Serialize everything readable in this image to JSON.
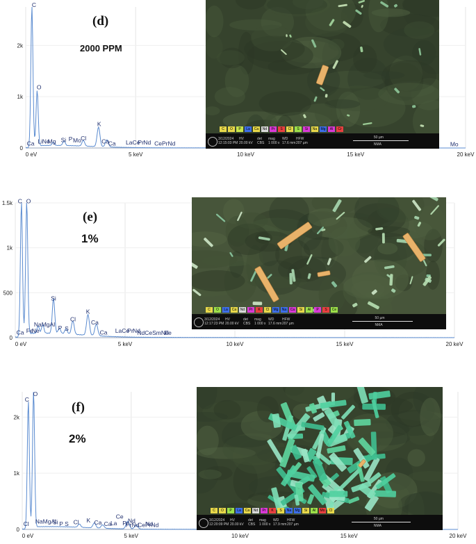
{
  "chart_data": [
    {
      "type": "line",
      "panel_label": "(d)",
      "concentration_label": "2000 PPM",
      "xlabels": [
        "0 eV",
        "5 keV",
        "10 keV",
        "15 keV",
        "20 keV"
      ],
      "xticks": [
        0,
        5,
        10,
        15,
        20
      ],
      "xlim": [
        0,
        20
      ],
      "yticks": [
        {
          "value": 0,
          "label": "0"
        },
        {
          "value": 1000,
          "label": "1k"
        },
        {
          "value": 2000,
          "label": "2k"
        }
      ],
      "ylim": [
        0,
        2750
      ],
      "grid": true,
      "series_color": "#5a8bd0",
      "peaks": [
        {
          "element": "C",
          "energy": 0.28,
          "counts": 2700
        },
        {
          "element": "O",
          "energy": 0.52,
          "counts": 1080
        },
        {
          "element": "Ca",
          "energy": 0.34,
          "counts": 70
        },
        {
          "element": "K",
          "energy": 3.31,
          "counts": 380
        },
        {
          "element": "Cl",
          "energy": 2.62,
          "counts": 110
        },
        {
          "element": "Si",
          "energy": 1.74,
          "counts": 90
        },
        {
          "element": "Ca",
          "energy": 3.69,
          "counts": 140
        },
        {
          "element": "Mg",
          "energy": 1.25,
          "counts": 60
        }
      ],
      "annotations": [
        {
          "text": "C",
          "x": 0.28,
          "y": 2720
        },
        {
          "text": "O",
          "x": 0.5,
          "y": 1120
        },
        {
          "text": "K",
          "x": 3.25,
          "y": 400
        },
        {
          "text": "Ca",
          "x": 0.05,
          "y": 20
        },
        {
          "text": "Li",
          "x": 0.55,
          "y": 60
        },
        {
          "text": "Ne",
          "x": 0.75,
          "y": 60
        },
        {
          "text": "Mg",
          "x": 1.0,
          "y": 60
        },
        {
          "text": "Si",
          "x": 1.6,
          "y": 90
        },
        {
          "text": "P",
          "x": 1.95,
          "y": 110
        },
        {
          "text": "Mo",
          "x": 2.15,
          "y": 80
        },
        {
          "text": "Cl",
          "x": 2.5,
          "y": 120
        },
        {
          "text": "Ca",
          "x": 3.45,
          "y": 60
        },
        {
          "text": "Ca",
          "x": 3.75,
          "y": 20
        },
        {
          "text": "La",
          "x": 4.55,
          "y": 40
        },
        {
          "text": "Ce",
          "x": 4.85,
          "y": 40
        },
        {
          "text": "Pr",
          "x": 5.1,
          "y": 40
        },
        {
          "text": "Nd",
          "x": 5.35,
          "y": 40
        },
        {
          "text": "CePrNd",
          "x": 5.85,
          "y": 20
        },
        {
          "text": "Mo",
          "x": 17.8,
          "y": 10
        },
        {
          "text": "Mo",
          "x": 19.3,
          "y": 10
        }
      ]
    },
    {
      "type": "line",
      "panel_label": "(e)",
      "concentration_label": "1%",
      "xlabels": [
        "0 eV",
        "5 keV",
        "10 keV",
        "15 keV",
        "20 keV"
      ],
      "xticks": [
        0,
        5,
        10,
        15,
        20
      ],
      "xlim": [
        0,
        20
      ],
      "yticks": [
        {
          "value": 0,
          "label": "0"
        },
        {
          "value": 500,
          "label": "500"
        },
        {
          "value": 1000,
          "label": "1k"
        },
        {
          "value": 1500,
          "label": "1.5k"
        }
      ],
      "ylim": [
        0,
        1500
      ],
      "grid": true,
      "series_color": "#5a8bd0",
      "peaks": [
        {
          "element": "C",
          "energy": 0.28,
          "counts": 1470
        },
        {
          "element": "O",
          "energy": 0.52,
          "counts": 1480
        },
        {
          "element": "Si",
          "energy": 1.74,
          "counts": 390
        },
        {
          "element": "K",
          "energy": 3.31,
          "counts": 230
        },
        {
          "element": "Ca",
          "energy": 3.69,
          "counts": 130
        },
        {
          "element": "Cl",
          "energy": 2.62,
          "counts": 150
        },
        {
          "element": "Mg",
          "energy": 1.25,
          "counts": 95
        },
        {
          "element": "Na",
          "energy": 1.04,
          "counts": 80
        },
        {
          "element": "P",
          "energy": 2.01,
          "counts": 60
        },
        {
          "element": "S",
          "energy": 2.31,
          "counts": 55
        }
      ],
      "annotations": [
        {
          "text": "C",
          "x": 0.12,
          "y": 1480
        },
        {
          "text": "O",
          "x": 0.5,
          "y": 1480
        },
        {
          "text": "Si",
          "x": 1.62,
          "y": 400
        },
        {
          "text": "K",
          "x": 3.22,
          "y": 250
        },
        {
          "text": "Ca",
          "x": 3.45,
          "y": 130
        },
        {
          "text": "Cl",
          "x": 2.5,
          "y": 165
        },
        {
          "text": "NaMgAl",
          "x": 0.85,
          "y": 110
        },
        {
          "text": "P",
          "x": 1.95,
          "y": 70
        },
        {
          "text": "S",
          "x": 2.25,
          "y": 60
        },
        {
          "text": "Ca",
          "x": 3.85,
          "y": 20
        },
        {
          "text": "Ca",
          "x": 0.05,
          "y": 20
        },
        {
          "text": "Fe",
          "x": 0.5,
          "y": 40
        },
        {
          "text": "Ne",
          "x": 0.75,
          "y": 40
        },
        {
          "text": "La",
          "x": 4.55,
          "y": 40
        },
        {
          "text": "Ce",
          "x": 4.85,
          "y": 40
        },
        {
          "text": "Pr",
          "x": 5.1,
          "y": 40
        },
        {
          "text": "Nd",
          "x": 5.35,
          "y": 40
        },
        {
          "text": "NdCeSmNd",
          "x": 5.55,
          "y": 15
        },
        {
          "text": "Fe",
          "x": 6.8,
          "y": 15
        }
      ]
    },
    {
      "type": "line",
      "panel_label": "(f)",
      "concentration_label": "2%",
      "xlabels": [
        "0 eV",
        "5 keV",
        "10 keV",
        "15 keV",
        "20 keV"
      ],
      "xticks": [
        0,
        5,
        10,
        15,
        20
      ],
      "xlim": [
        0,
        20
      ],
      "yticks": [
        {
          "value": 0,
          "label": "0"
        },
        {
          "value": 1000,
          "label": "1k"
        },
        {
          "value": 2000,
          "label": "2k"
        }
      ],
      "ylim": [
        0,
        2450
      ],
      "grid": true,
      "series_color": "#5a8bd0",
      "peaks": [
        {
          "element": "C",
          "energy": 0.28,
          "counts": 2250
        },
        {
          "element": "O",
          "energy": 0.52,
          "counts": 2420
        },
        {
          "element": "K",
          "energy": 3.31,
          "counts": 90
        },
        {
          "element": "Ce",
          "energy": 4.84,
          "counts": 140
        },
        {
          "element": "Cl",
          "energy": 2.62,
          "counts": 60
        },
        {
          "element": "Nd",
          "energy": 5.23,
          "counts": 70
        },
        {
          "element": "Ca",
          "energy": 3.69,
          "counts": 60
        }
      ],
      "annotations": [
        {
          "text": "C",
          "x": 0.12,
          "y": 2250
        },
        {
          "text": "O",
          "x": 0.5,
          "y": 2350
        },
        {
          "text": "(f)",
          "x": 2.1,
          "y": 2050
        },
        {
          "text": "Cl",
          "x": 0.05,
          "y": 40
        },
        {
          "text": "NaMgAl",
          "x": 0.6,
          "y": 80
        },
        {
          "text": "Si",
          "x": 1.4,
          "y": 70
        },
        {
          "text": "P",
          "x": 1.7,
          "y": 40
        },
        {
          "text": "S",
          "x": 1.95,
          "y": 40
        },
        {
          "text": "Cl",
          "x": 2.35,
          "y": 70
        },
        {
          "text": "K",
          "x": 2.95,
          "y": 100
        },
        {
          "text": "Ca",
          "x": 3.3,
          "y": 60
        },
        {
          "text": "Ca",
          "x": 3.75,
          "y": 40
        },
        {
          "text": "Ce",
          "x": 4.3,
          "y": 170
        },
        {
          "text": "La",
          "x": 4.05,
          "y": 50
        },
        {
          "text": "Nd",
          "x": 4.85,
          "y": 90
        },
        {
          "text": "Pr",
          "x": 4.6,
          "y": 50
        },
        {
          "text": "PrNd",
          "x": 4.75,
          "y": 20
        },
        {
          "text": "CePrNd",
          "x": 5.3,
          "y": 20
        },
        {
          "text": "Nd",
          "x": 5.65,
          "y": 40
        }
      ]
    }
  ],
  "sem_images": [
    {
      "date": "3/12/2024",
      "time": "12:15:03 PM",
      "hv": "20.00 kV",
      "det": "CBS",
      "mag": "1 000 x",
      "wd": "17.6 mm",
      "hfw": "207 µm",
      "scale": "50 µm",
      "org": "NMA",
      "chips": [
        {
          "label": "C",
          "color": "#e8d84a"
        },
        {
          "label": "O",
          "color": "#e8d84a"
        },
        {
          "label": "P",
          "color": "#c7e44b"
        },
        {
          "label": "La",
          "color": "#3d6ee8"
        },
        {
          "label": "Ca",
          "color": "#e8d84a"
        },
        {
          "label": "Nd",
          "color": "#d9d9d9"
        },
        {
          "label": "Pr",
          "color": "#d93ad6"
        },
        {
          "label": "S",
          "color": "#e84040"
        },
        {
          "label": "Cl",
          "color": "#e8d84a"
        },
        {
          "label": "S",
          "color": "#9de04a"
        },
        {
          "label": "Si",
          "color": "#d93ad6"
        },
        {
          "label": "Na",
          "color": "#e8d84a"
        },
        {
          "label": "Mg",
          "color": "#3d6ee8"
        },
        {
          "label": "Al",
          "color": "#d93ad6"
        },
        {
          "label": "Cr",
          "color": "#e84040"
        }
      ],
      "texture": "dark",
      "particles": "sparse"
    },
    {
      "date": "3/12/2024",
      "time": "12:17:23 PM",
      "hv": "20.00 kV",
      "det": "CBS",
      "mag": "1 000 x",
      "wd": "17.6 mm",
      "hfw": "207 µm",
      "scale": "50 µm",
      "org": "NMA",
      "chips": [
        {
          "label": "C",
          "color": "#e8d84a"
        },
        {
          "label": "O",
          "color": "#9de04a"
        },
        {
          "label": "La",
          "color": "#3d6ee8"
        },
        {
          "label": "Ca",
          "color": "#e8d84a"
        },
        {
          "label": "Nd",
          "color": "#d9d9d9"
        },
        {
          "label": "Pr",
          "color": "#d93ad6"
        },
        {
          "label": "K",
          "color": "#e84040"
        },
        {
          "label": "Cl",
          "color": "#e8d84a"
        },
        {
          "label": "Mg",
          "color": "#3d6ee8"
        },
        {
          "label": "Na",
          "color": "#3d6ee8"
        },
        {
          "label": "Ca",
          "color": "#d93ad6"
        },
        {
          "label": "Si",
          "color": "#e8d84a"
        },
        {
          "label": "Al",
          "color": "#9de04a"
        },
        {
          "label": "P",
          "color": "#d93ad6"
        },
        {
          "label": "S",
          "color": "#e84040"
        },
        {
          "label": "Ce",
          "color": "#9de04a"
        }
      ],
      "texture": "mottled",
      "particles": "rods"
    },
    {
      "date": "3/12/2024",
      "time": "12:20:09 PM",
      "hv": "20.00 kV",
      "det": "CBS",
      "mag": "1 000 x",
      "wd": "17.9 mm",
      "hfw": "207 µm",
      "scale": "50 µm",
      "org": "NMA",
      "chips": [
        {
          "label": "C",
          "color": "#e8d84a"
        },
        {
          "label": "O",
          "color": "#e8d84a"
        },
        {
          "label": "P",
          "color": "#9de04a"
        },
        {
          "label": "La",
          "color": "#3d6ee8"
        },
        {
          "label": "Ca",
          "color": "#e8d84a"
        },
        {
          "label": "Nd",
          "color": "#d9d9d9"
        },
        {
          "label": "Pr",
          "color": "#d93ad6"
        },
        {
          "label": "K",
          "color": "#e84040"
        },
        {
          "label": "S",
          "color": "#e8d84a"
        },
        {
          "label": "Na",
          "color": "#3d6ee8"
        },
        {
          "label": "Mg",
          "color": "#3d6ee8"
        },
        {
          "label": "Si",
          "color": "#e8d84a"
        },
        {
          "label": "Al",
          "color": "#9de04a"
        },
        {
          "label": "Mo",
          "color": "#e84040"
        },
        {
          "label": "Cl",
          "color": "#e8d84a"
        }
      ],
      "texture": "dark",
      "particles": "dense-green"
    }
  ]
}
